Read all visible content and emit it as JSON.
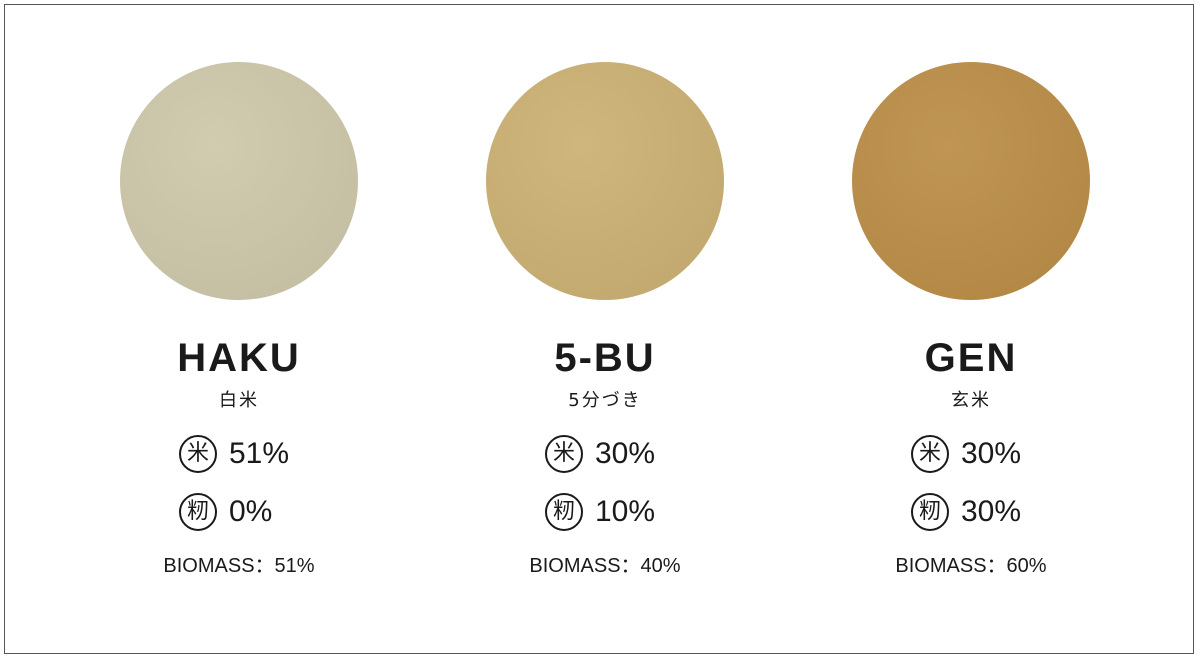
{
  "items": [
    {
      "name": "HAKU",
      "subtitle": "白米",
      "color": "#cdc7a9",
      "rice_icon": "米",
      "rice": "51%",
      "husk_icon": "籾",
      "husk": "0%",
      "biomass": "BIOMASS：51%"
    },
    {
      "name": "5-BU",
      "subtitle": "5分づき",
      "color": "#cbb072",
      "rice_icon": "米",
      "rice": "30%",
      "husk_icon": "籾",
      "husk": "10%",
      "biomass": "BIOMASS：40%"
    },
    {
      "name": "GEN",
      "subtitle": "玄米",
      "color": "#bb8d46",
      "rice_icon": "米",
      "rice": "30%",
      "husk_icon": "籾",
      "husk": "30%",
      "biomass": "BIOMASS：60%"
    }
  ]
}
